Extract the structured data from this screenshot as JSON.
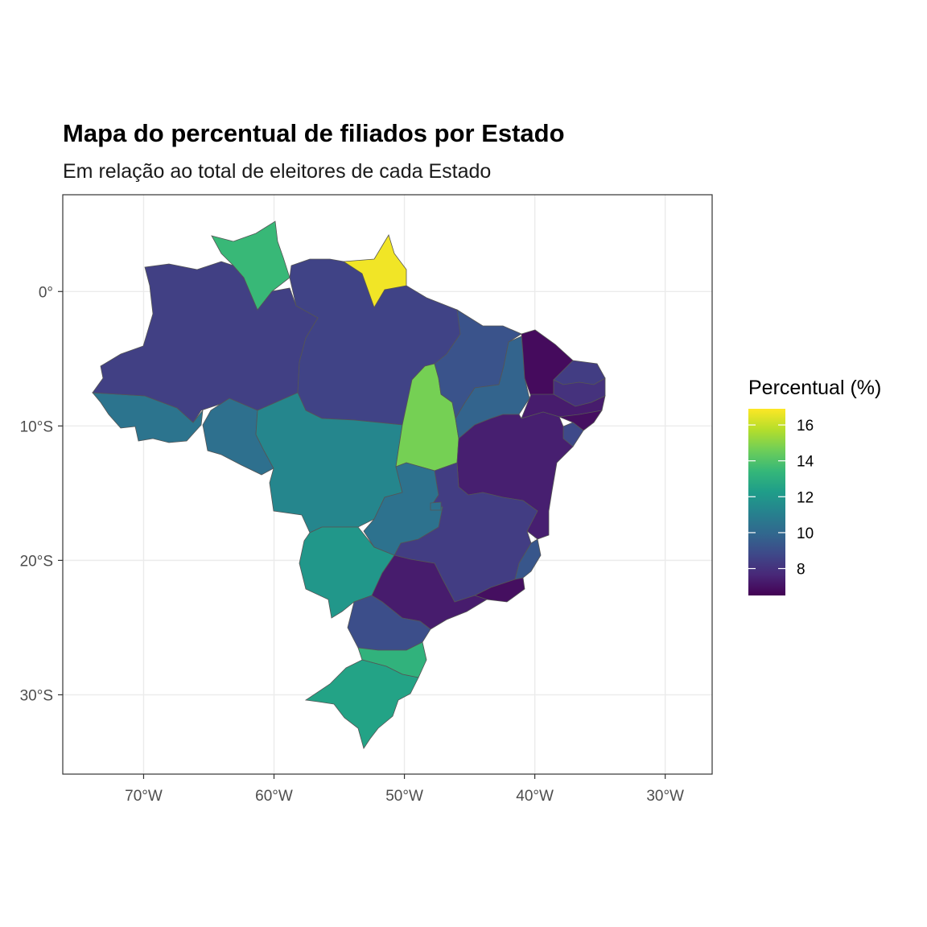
{
  "title": "Mapa do percentual de filiados por Estado",
  "subtitle": "Em relação ao total de eleitores de cada Estado",
  "legend": {
    "title": "Percentual (%)",
    "breaks": [
      16,
      14,
      12,
      10,
      8
    ],
    "labels": [
      "16",
      "14",
      "12",
      "10",
      "8"
    ],
    "min": 6.5,
    "max": 16.9,
    "palette": [
      "#440154",
      "#482878",
      "#3e4989",
      "#31688e",
      "#26828e",
      "#1f9e89",
      "#35b779",
      "#6ece58",
      "#b5de2b",
      "#fde725"
    ]
  },
  "axes": {
    "x_ticks": [
      "70°W",
      "60°W",
      "50°W",
      "40°W",
      "30°W"
    ],
    "x_values": [
      -70,
      -60,
      -50,
      -40,
      -30
    ],
    "y_ticks": [
      "0°",
      "10°S",
      "20°S",
      "30°S"
    ],
    "y_values": [
      0,
      -10,
      -20,
      -30
    ],
    "lon_range": [
      -76.2,
      -26.4
    ],
    "lat_range": [
      -35.9,
      7.2
    ],
    "grid": true
  },
  "chart_data": {
    "type": "choropleth",
    "regions": [
      {
        "id": "AC",
        "value": 10.5
      },
      {
        "id": "AM",
        "value": 8.5
      },
      {
        "id": "RR",
        "value": 13.5
      },
      {
        "id": "PA",
        "value": 8.6
      },
      {
        "id": "AP",
        "value": 16.7
      },
      {
        "id": "RO",
        "value": 10.3
      },
      {
        "id": "MT",
        "value": 11.3
      },
      {
        "id": "TO",
        "value": 14.7
      },
      {
        "id": "MA",
        "value": 9.2
      },
      {
        "id": "PI",
        "value": 9.8
      },
      {
        "id": "CE",
        "value": 6.8
      },
      {
        "id": "RN",
        "value": 8.4
      },
      {
        "id": "PB",
        "value": 8.0
      },
      {
        "id": "PE",
        "value": 7.3
      },
      {
        "id": "AL",
        "value": 6.9
      },
      {
        "id": "SE",
        "value": 8.8
      },
      {
        "id": "BA",
        "value": 7.4
      },
      {
        "id": "MG",
        "value": 8.4
      },
      {
        "id": "ES",
        "value": 9.3
      },
      {
        "id": "RJ",
        "value": 6.9
      },
      {
        "id": "SP",
        "value": 7.3
      },
      {
        "id": "GO",
        "value": 10.4
      },
      {
        "id": "DF",
        "value": 10.4
      },
      {
        "id": "MS",
        "value": 12.0
      },
      {
        "id": "PR",
        "value": 9.0
      },
      {
        "id": "SC",
        "value": 13.2
      },
      {
        "id": "RS",
        "value": 12.5
      }
    ]
  }
}
